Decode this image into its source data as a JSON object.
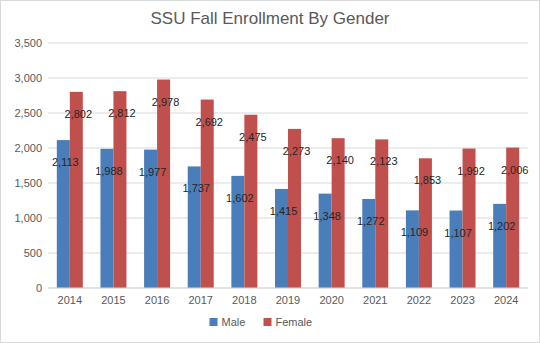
{
  "chart_data": {
    "type": "bar",
    "title": "SSU Fall Enrollment By Gender",
    "categories": [
      "2014",
      "2015",
      "2016",
      "2017",
      "2018",
      "2019",
      "2020",
      "2021",
      "2022",
      "2023",
      "2024"
    ],
    "series": [
      {
        "name": "Male",
        "color": "#4a7ebb",
        "values": [
          2113,
          1988,
          1977,
          1737,
          1602,
          1415,
          1348,
          1272,
          1109,
          1107,
          1202
        ],
        "value_labels": [
          "2,113",
          "1,988",
          "1,977",
          "1,737",
          "1,602",
          "1,415",
          "1,348",
          "1,272",
          "1,109",
          "1,107",
          "1,202"
        ]
      },
      {
        "name": "Female",
        "color": "#c0504d",
        "values": [
          2802,
          2812,
          2978,
          2692,
          2475,
          2273,
          2140,
          2123,
          1853,
          1992,
          2006
        ],
        "value_labels": [
          "2,802",
          "2,812",
          "2,978",
          "2,692",
          "2,475",
          "2,273",
          "2,140",
          "2,123",
          "1,853",
          "1,992",
          "2,006"
        ]
      }
    ],
    "ylim": [
      0,
      3500
    ],
    "yticks": [
      0,
      500,
      {
        "value": 1000,
        "label": "1,000"
      },
      {
        "value": 1500,
        "label": "1,500"
      },
      {
        "value": 2000,
        "label": "2,000"
      },
      {
        "value": 2500,
        "label": "2,500"
      },
      {
        "value": 3000,
        "label": "3,000"
      },
      {
        "value": 3500,
        "label": "3,500"
      }
    ],
    "grid": true,
    "legend": "bottom",
    "data_labels": true
  }
}
